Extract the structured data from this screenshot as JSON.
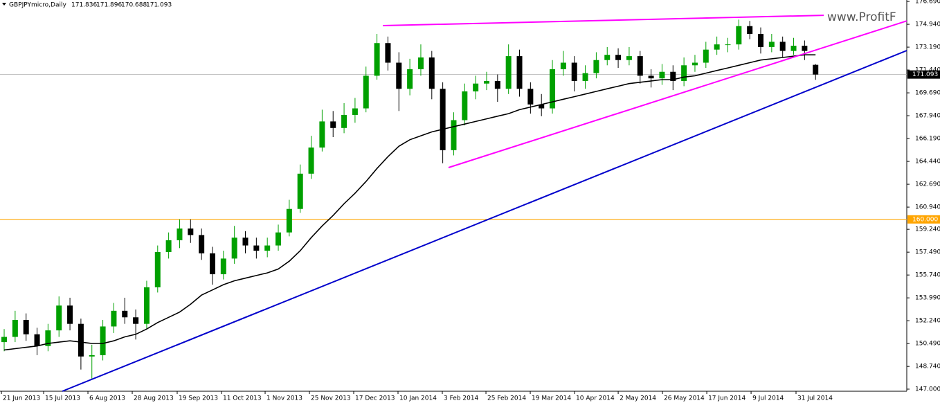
{
  "chart_data": {
    "type": "candlestick",
    "header": {
      "symbol": "GBPJPYmicro,Daily",
      "ohlc": [
        171.836,
        171.896,
        170.688,
        171.093
      ]
    },
    "watermark": "www.ProfitF",
    "up_color": "#00a000",
    "down_color": "#000000",
    "candles": [
      [
        150.6,
        151.6,
        149.9,
        151.0
      ],
      [
        151.0,
        153.0,
        150.6,
        152.3
      ],
      [
        152.3,
        152.8,
        150.7,
        151.2
      ],
      [
        151.2,
        151.7,
        149.6,
        150.3
      ],
      [
        150.3,
        152.0,
        149.9,
        151.5
      ],
      [
        151.5,
        154.1,
        151.0,
        153.4
      ],
      [
        153.4,
        154.0,
        151.5,
        152.0
      ],
      [
        152.0,
        152.4,
        148.5,
        149.5
      ],
      [
        149.5,
        150.4,
        147.8,
        149.6
      ],
      [
        149.6,
        152.3,
        149.2,
        151.8
      ],
      [
        151.8,
        153.6,
        151.3,
        153.0
      ],
      [
        153.0,
        154.0,
        152.0,
        152.5
      ],
      [
        152.5,
        153.1,
        150.8,
        152.0
      ],
      [
        152.0,
        155.3,
        151.6,
        154.8
      ],
      [
        154.8,
        158.0,
        154.4,
        157.5
      ],
      [
        157.5,
        159.0,
        157.0,
        158.4
      ],
      [
        158.4,
        160.0,
        157.8,
        159.3
      ],
      [
        159.3,
        160.0,
        158.2,
        158.8
      ],
      [
        158.8,
        159.3,
        156.9,
        157.4
      ],
      [
        157.4,
        157.9,
        155.0,
        155.8
      ],
      [
        155.8,
        157.6,
        155.4,
        157.0
      ],
      [
        157.0,
        159.5,
        156.6,
        158.6
      ],
      [
        158.6,
        159.1,
        157.4,
        158.0
      ],
      [
        158.0,
        158.6,
        157.0,
        157.6
      ],
      [
        157.6,
        158.6,
        157.1,
        158.0
      ],
      [
        158.0,
        159.6,
        157.6,
        159.0
      ],
      [
        159.0,
        161.5,
        158.7,
        160.8
      ],
      [
        160.8,
        164.2,
        160.5,
        163.5
      ],
      [
        163.5,
        166.4,
        163.1,
        165.5
      ],
      [
        165.5,
        168.4,
        165.2,
        167.5
      ],
      [
        167.5,
        168.3,
        166.3,
        167.0
      ],
      [
        167.0,
        168.9,
        166.6,
        168.0
      ],
      [
        168.0,
        169.3,
        167.4,
        168.5
      ],
      [
        168.5,
        171.7,
        168.2,
        171.0
      ],
      [
        171.0,
        174.2,
        170.7,
        173.5
      ],
      [
        173.5,
        174.0,
        171.4,
        172.0
      ],
      [
        172.0,
        172.8,
        168.3,
        170.0
      ],
      [
        170.0,
        172.3,
        169.5,
        171.5
      ],
      [
        171.5,
        173.4,
        171.0,
        172.4
      ],
      [
        172.4,
        172.9,
        169.2,
        170.0
      ],
      [
        170.0,
        170.5,
        164.3,
        165.3
      ],
      [
        165.3,
        168.2,
        164.9,
        167.6
      ],
      [
        167.6,
        170.4,
        167.2,
        169.8
      ],
      [
        169.8,
        171.0,
        169.2,
        170.4
      ],
      [
        170.4,
        171.3,
        169.9,
        170.6
      ],
      [
        170.6,
        171.1,
        169.0,
        170.0
      ],
      [
        170.0,
        173.4,
        169.6,
        172.5
      ],
      [
        172.5,
        173.0,
        169.4,
        170.0
      ],
      [
        170.0,
        170.5,
        168.1,
        168.8
      ],
      [
        168.8,
        169.6,
        167.9,
        168.5
      ],
      [
        168.5,
        172.2,
        168.1,
        171.5
      ],
      [
        171.5,
        172.9,
        171.0,
        172.0
      ],
      [
        172.0,
        172.5,
        169.8,
        170.6
      ],
      [
        170.6,
        171.8,
        170.0,
        171.2
      ],
      [
        171.2,
        172.8,
        170.8,
        172.2
      ],
      [
        172.2,
        173.2,
        171.8,
        172.6
      ],
      [
        172.6,
        173.1,
        171.6,
        172.2
      ],
      [
        172.2,
        173.2,
        171.8,
        172.5
      ],
      [
        172.5,
        172.9,
        170.4,
        171.0
      ],
      [
        171.0,
        171.5,
        170.1,
        170.8
      ],
      [
        170.8,
        171.9,
        170.3,
        171.3
      ],
      [
        171.3,
        171.8,
        169.9,
        170.6
      ],
      [
        170.6,
        172.4,
        170.2,
        171.8
      ],
      [
        171.8,
        172.6,
        171.3,
        172.0
      ],
      [
        172.0,
        173.6,
        171.6,
        173.0
      ],
      [
        173.0,
        174.0,
        172.6,
        173.4
      ],
      [
        173.4,
        173.9,
        172.8,
        173.4
      ],
      [
        173.4,
        175.3,
        173.0,
        174.8
      ],
      [
        174.8,
        175.2,
        173.8,
        174.2
      ],
      [
        174.2,
        174.7,
        172.7,
        173.2
      ],
      [
        173.2,
        174.2,
        172.8,
        173.6
      ],
      [
        173.6,
        174.0,
        172.4,
        172.9
      ],
      [
        172.9,
        173.9,
        172.6,
        173.3
      ],
      [
        173.3,
        173.7,
        172.2,
        172.9
      ],
      [
        171.836,
        171.896,
        170.688,
        171.093
      ]
    ],
    "moving_average": {
      "color": "#000000",
      "values": [
        150.0,
        150.1,
        150.2,
        150.3,
        150.5,
        150.6,
        150.7,
        150.6,
        150.5,
        150.5,
        150.7,
        151.0,
        151.2,
        151.6,
        152.1,
        152.5,
        152.9,
        153.5,
        154.2,
        154.6,
        155.0,
        155.3,
        155.5,
        155.7,
        155.9,
        156.2,
        156.8,
        157.6,
        158.6,
        159.5,
        160.3,
        161.2,
        162.0,
        162.9,
        163.9,
        164.8,
        165.6,
        166.1,
        166.4,
        166.7,
        166.9,
        167.1,
        167.3,
        167.5,
        167.7,
        167.9,
        168.1,
        168.4,
        168.6,
        168.8,
        169.0,
        169.2,
        169.4,
        169.6,
        169.8,
        170.0,
        170.2,
        170.4,
        170.5,
        170.6,
        170.7,
        170.7,
        170.9,
        171.0,
        171.2,
        171.4,
        171.6,
        171.8,
        172.0,
        172.2,
        172.3,
        172.4,
        172.5,
        172.6,
        172.6
      ]
    },
    "trendlines": [
      {
        "color": "#ff00ff",
        "x": [
          34.53,
          74.75
        ],
        "y": [
          174.84,
          175.63
        ]
      },
      {
        "color": "#ff00ff",
        "x": [
          40.53,
          82.32
        ],
        "y": [
          163.97,
          175.2
        ]
      },
      {
        "color": "#0000cc",
        "x": [
          5.3,
          82.32
        ],
        "y": [
          146.84,
          172.93
        ]
      }
    ],
    "level": {
      "value": 160,
      "label": "160.000",
      "color": "#ffa500"
    },
    "last_price": 171.093,
    "xlim": [
      -0.38,
      82.32
    ],
    "ylim": [
      146.84,
      176.8
    ],
    "yticks": [
      {
        "value": 176.69,
        "label": "176.690"
      },
      {
        "value": 174.94,
        "label": "174.940"
      },
      {
        "value": 173.19,
        "label": "173.190"
      },
      {
        "value": 171.44,
        "label": "171.440"
      },
      {
        "value": 169.69,
        "label": "169.690"
      },
      {
        "value": 167.94,
        "label": "167.940"
      },
      {
        "value": 166.19,
        "label": "166.190"
      },
      {
        "value": 164.44,
        "label": "164.440"
      },
      {
        "value": 162.69,
        "label": "162.690"
      },
      {
        "value": 160.94,
        "label": "160.940"
      },
      {
        "value": 159.24,
        "label": "159.240"
      },
      {
        "value": 157.49,
        "label": "157.490"
      },
      {
        "value": 155.74,
        "label": "155.740"
      },
      {
        "value": 153.99,
        "label": "153.990"
      },
      {
        "value": 152.24,
        "label": "152.240"
      },
      {
        "value": 150.49,
        "label": "150.490"
      },
      {
        "value": 148.74,
        "label": "148.740"
      },
      {
        "value": 147,
        "label": "147.000"
      }
    ],
    "xticks": [
      {
        "value": -0.25,
        "label": "21 Jun 2013"
      },
      {
        "value": 3.6,
        "label": "15 Jul 2013"
      },
      {
        "value": 7.64,
        "label": "6 Aug 2013"
      },
      {
        "value": 11.68,
        "label": "28 Aug 2013"
      },
      {
        "value": 15.78,
        "label": "19 Sep 2013"
      },
      {
        "value": 19.82,
        "label": "11 Oct 2013"
      },
      {
        "value": 23.8,
        "label": "1 Nov 2013"
      },
      {
        "value": 27.84,
        "label": "25 Nov 2013"
      },
      {
        "value": 31.88,
        "label": "17 Dec 2013"
      },
      {
        "value": 35.92,
        "label": "10 Jan 2014"
      },
      {
        "value": 39.96,
        "label": "3 Feb 2014"
      },
      {
        "value": 43.94,
        "label": "25 Feb 2014"
      },
      {
        "value": 47.98,
        "label": "19 Mar 2014"
      },
      {
        "value": 52.02,
        "label": "10 Apr 2014"
      },
      {
        "value": 56.0,
        "label": "2 May 2014"
      },
      {
        "value": 60.04,
        "label": "26 May 2014"
      },
      {
        "value": 64.08,
        "label": "17 Jun 2014"
      },
      {
        "value": 68.12,
        "label": "9 Jul 2014"
      },
      {
        "value": 72.22,
        "label": "31 Jul 2014"
      }
    ]
  }
}
